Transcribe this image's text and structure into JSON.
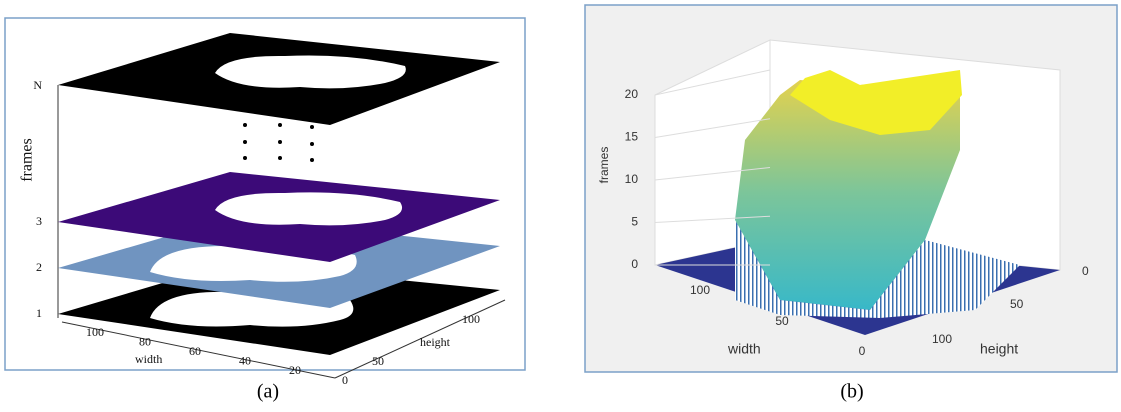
{
  "panel_a": {
    "frame_labels": [
      "N",
      "3",
      "2",
      "1"
    ],
    "y_label": "frames",
    "width_ticks": [
      100,
      80,
      60,
      40,
      20,
      0
    ],
    "width_label": "width",
    "height_ticks": [
      50,
      100
    ],
    "height_label": "height",
    "caption": "(a)"
  },
  "panel_b": {
    "y_ticks": [
      0,
      5,
      10,
      15,
      20
    ],
    "y_label": "frames",
    "width_ticks": [
      100,
      50,
      0
    ],
    "width_label": "width",
    "height_ticks": [
      0,
      50,
      100
    ],
    "height_label": "height",
    "caption": "(b)"
  }
}
